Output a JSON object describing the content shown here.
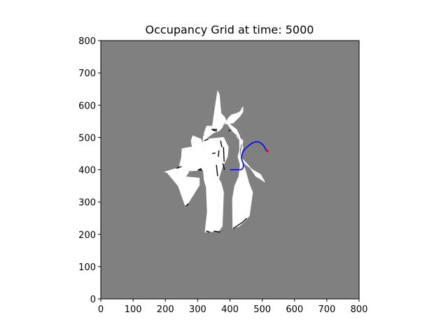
{
  "chart_data": {
    "type": "heatmap",
    "title": "Occupancy Grid at time: 5000",
    "xlabel": "",
    "ylabel": "",
    "xlim": [
      0,
      800
    ],
    "ylim": [
      0,
      800
    ],
    "x_ticks": [
      0,
      100,
      200,
      300,
      400,
      500,
      600,
      700,
      800
    ],
    "y_ticks": [
      0,
      100,
      200,
      300,
      400,
      500,
      600,
      700,
      800
    ],
    "x_tick_labels": [
      "0",
      "100",
      "200",
      "300",
      "400",
      "500",
      "600",
      "700",
      "800"
    ],
    "y_tick_labels": [
      "0",
      "100",
      "200",
      "300",
      "400",
      "500",
      "600",
      "700",
      "800"
    ],
    "grid": false,
    "colors": {
      "unknown": "#808080",
      "free": "#ffffff",
      "occupied": "#000000",
      "trajectory": "#0000ff",
      "current_pose": "#ff0000"
    },
    "free_space_regions": [
      [
        [
          198,
          393
        ],
        [
          230,
          403
        ],
        [
          268,
          400
        ],
        [
          272,
          392
        ],
        [
          262,
          378
        ],
        [
          305,
          374
        ],
        [
          305,
          352
        ],
        [
          263,
          285
        ],
        [
          240,
          350
        ],
        [
          205,
          392
        ]
      ],
      [
        [
          250,
          438
        ],
        [
          240,
          395
        ],
        [
          302,
          398
        ],
        [
          315,
          415
        ],
        [
          324,
          437
        ],
        [
          340,
          445
        ],
        [
          322,
          455
        ],
        [
          300,
          462
        ],
        [
          278,
          470
        ],
        [
          252,
          465
        ]
      ],
      [
        [
          285,
          505
        ],
        [
          310,
          495
        ],
        [
          318,
          470
        ],
        [
          322,
          448
        ],
        [
          285,
          460
        ],
        [
          280,
          490
        ]
      ],
      [
        [
          318,
          505
        ],
        [
          330,
          495
        ],
        [
          380,
          500
        ],
        [
          395,
          470
        ],
        [
          392,
          440
        ],
        [
          375,
          405
        ],
        [
          365,
          372
        ],
        [
          372,
          360
        ],
        [
          380,
          330
        ],
        [
          376,
          225
        ],
        [
          365,
          210
        ],
        [
          323,
          207
        ],
        [
          330,
          270
        ],
        [
          327,
          345
        ],
        [
          320,
          370
        ],
        [
          318,
          395
        ],
        [
          300,
          410
        ],
        [
          312,
          440
        ]
      ],
      [
        [
          328,
          535
        ],
        [
          346,
          535
        ],
        [
          352,
          578
        ],
        [
          357,
          612
        ],
        [
          362,
          643
        ],
        [
          367,
          632
        ],
        [
          372,
          575
        ],
        [
          384,
          562
        ],
        [
          390,
          545
        ],
        [
          410,
          518
        ],
        [
          425,
          505
        ],
        [
          435,
          495
        ],
        [
          432,
          470
        ],
        [
          425,
          440
        ],
        [
          432,
          415
        ],
        [
          428,
          380
        ],
        [
          415,
          350
        ],
        [
          408,
          310
        ],
        [
          409,
          218
        ],
        [
          428,
          225
        ],
        [
          445,
          240
        ],
        [
          460,
          258
        ],
        [
          470,
          330
        ],
        [
          458,
          360
        ],
        [
          450,
          390
        ],
        [
          440,
          420
        ],
        [
          430,
          440
        ],
        [
          430,
          505
        ],
        [
          420,
          525
        ],
        [
          398,
          542
        ],
        [
          384,
          548
        ],
        [
          375,
          530
        ],
        [
          365,
          520
        ],
        [
          350,
          515
        ],
        [
          330,
          500
        ],
        [
          323,
          490
        ],
        [
          320,
          512
        ]
      ],
      [
        [
          420,
          505
        ],
        [
          432,
          490
        ],
        [
          440,
          470
        ],
        [
          432,
          440
        ],
        [
          460,
          410
        ],
        [
          480,
          380
        ],
        [
          500,
          368
        ],
        [
          508,
          362
        ],
        [
          495,
          385
        ],
        [
          470,
          400
        ],
        [
          445,
          420
        ],
        [
          433,
          440
        ],
        [
          440,
          490
        ]
      ],
      [
        [
          385,
          542
        ],
        [
          395,
          560
        ],
        [
          405,
          570
        ],
        [
          420,
          574
        ],
        [
          432,
          580
        ],
        [
          440,
          595
        ],
        [
          440,
          580
        ],
        [
          430,
          565
        ],
        [
          420,
          555
        ],
        [
          410,
          545
        ]
      ]
    ],
    "occupied_segments": [
      [
        [
          235,
          405
        ],
        [
          250,
          410
        ]
      ],
      [
        [
          262,
          286
        ],
        [
          272,
          295
        ]
      ],
      [
        [
          300,
          398
        ],
        [
          312,
          404
        ]
      ],
      [
        [
          320,
          490
        ],
        [
          333,
          495
        ]
      ],
      [
        [
          347,
          522
        ],
        [
          360,
          520
        ]
      ],
      [
        [
          345,
          450
        ],
        [
          355,
          452
        ]
      ],
      [
        [
          358,
          415
        ],
        [
          362,
          380
        ]
      ],
      [
        [
          366,
          460
        ],
        [
          364,
          440
        ]
      ],
      [
        [
          371,
          490
        ],
        [
          375,
          470
        ]
      ],
      [
        [
          380,
          470
        ],
        [
          382,
          425
        ]
      ],
      [
        [
          378,
          420
        ],
        [
          383,
          400
        ]
      ],
      [
        [
          410,
          218
        ],
        [
          440,
          238
        ]
      ],
      [
        [
          440,
          238
        ],
        [
          452,
          250
        ]
      ],
      [
        [
          350,
          210
        ],
        [
          370,
          207
        ]
      ],
      [
        [
          326,
          210
        ],
        [
          338,
          207
        ]
      ],
      [
        [
          343,
          525
        ],
        [
          360,
          525
        ]
      ],
      [
        [
          395,
          520
        ],
        [
          402,
          523
        ]
      ],
      [
        [
          303,
          400
        ],
        [
          315,
          398
        ]
      ]
    ],
    "trajectory": {
      "x": [
        400,
        405,
        415,
        425,
        432,
        438,
        442,
        441,
        437,
        436,
        440,
        447,
        455,
        462,
        470,
        478,
        486,
        494,
        501,
        506,
        510,
        515
      ],
      "y": [
        400,
        400,
        400,
        400,
        400,
        402,
        410,
        420,
        430,
        442,
        455,
        465,
        472,
        478,
        483,
        486,
        487,
        484,
        478,
        472,
        465,
        456
      ]
    },
    "current_pose": {
      "x": 516,
      "y": 458
    }
  }
}
